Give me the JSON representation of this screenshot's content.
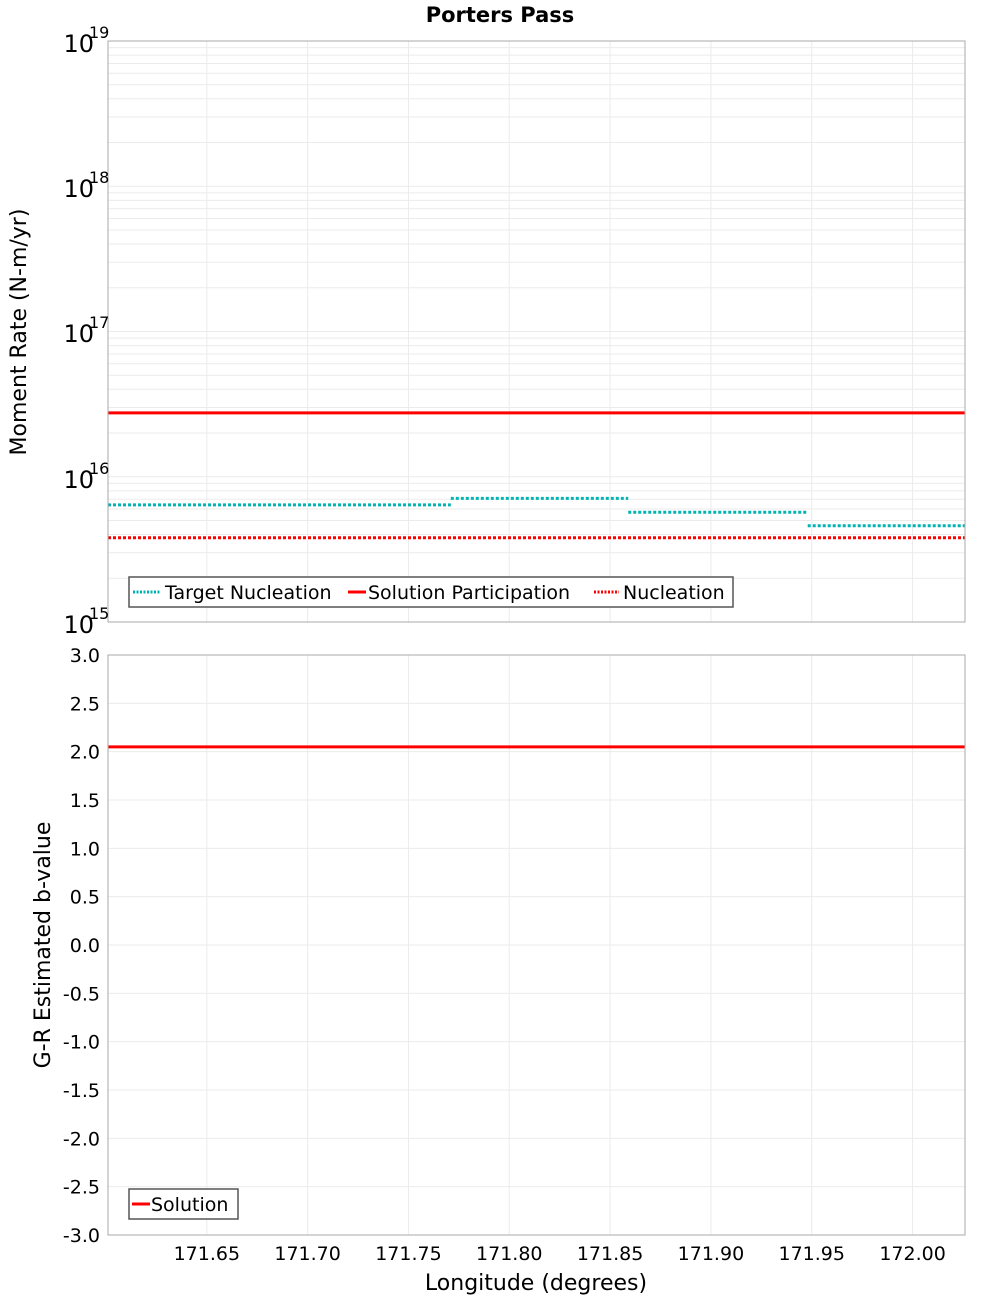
{
  "chart_data": [
    {
      "type": "line",
      "title": "Porters Pass",
      "xlabel": "Longitude (degrees)",
      "ylabel": "Moment Rate (N-m/yr)",
      "yscale": "log",
      "ylim": [
        1000000000000000.0,
        1e+19
      ],
      "xlim": [
        171.601,
        172.026
      ],
      "grid": true,
      "y_ticks": [
        {
          "base": "10",
          "exp": "19",
          "value": 1e+19
        },
        {
          "base": "10",
          "exp": "18",
          "value": 1e+18
        },
        {
          "base": "10",
          "exp": "17",
          "value": 1e+17
        },
        {
          "base": "10",
          "exp": "16",
          "value": 1e+16
        },
        {
          "base": "10",
          "exp": "15",
          "value": 1000000000000000.0
        }
      ],
      "legend_position": "lower-left",
      "series": [
        {
          "name": "Target Nucleation",
          "style": "dotted",
          "color": "#00b4b4",
          "segments": [
            {
              "x": [
                171.601,
                171.771
              ],
              "y": 6400000000000000.0
            },
            {
              "x": [
                171.771,
                171.859
              ],
              "y": 7100000000000000.0
            },
            {
              "x": [
                171.859,
                171.948
              ],
              "y": 5700000000000000.0
            },
            {
              "x": [
                171.948,
                172.026
              ],
              "y": 4600000000000000.0
            }
          ]
        },
        {
          "name": "Solution Participation",
          "style": "solid",
          "color": "#ff0000",
          "segments": [
            {
              "x": [
                171.601,
                172.026
              ],
              "y": 2.75e+16
            }
          ]
        },
        {
          "name": "Nucleation",
          "style": "dotted",
          "color": "#ff0000",
          "segments": [
            {
              "x": [
                171.601,
                172.026
              ],
              "y": 3800000000000000.0
            }
          ]
        }
      ],
      "section_boundaries": [
        171.686,
        171.771,
        171.859,
        171.948
      ]
    },
    {
      "type": "line",
      "title": "",
      "xlabel": "Longitude (degrees)",
      "ylabel": "G-R Estimated b-value",
      "ylim": [
        -3.0,
        3.0
      ],
      "xlim": [
        171.601,
        172.026
      ],
      "grid": true,
      "y_ticks": [
        "3.0",
        "2.5",
        "2.0",
        "1.5",
        "1.0",
        "0.5",
        "0.0",
        "-0.5",
        "-1.0",
        "-1.5",
        "-2.0",
        "-2.5",
        "-3.0"
      ],
      "x_ticks": [
        "171.65",
        "171.70",
        "171.75",
        "171.80",
        "171.85",
        "171.90",
        "171.95",
        "172.00"
      ],
      "legend_position": "lower-left",
      "series": [
        {
          "name": "Solution",
          "style": "solid",
          "color": "#ff0000",
          "segments": [
            {
              "x": [
                171.601,
                172.026
              ],
              "y": 2.05
            }
          ]
        }
      ]
    }
  ],
  "title": "Porters Pass",
  "top": {
    "ylabel": "Moment Rate (N-m/yr)",
    "ticks": [
      {
        "base": "10",
        "exp": "19"
      },
      {
        "base": "10",
        "exp": "18"
      },
      {
        "base": "10",
        "exp": "17"
      },
      {
        "base": "10",
        "exp": "16"
      },
      {
        "base": "10",
        "exp": "15"
      }
    ],
    "legend": [
      "Target Nucleation",
      "Solution Participation",
      "Nucleation"
    ]
  },
  "bottom": {
    "ylabel": "G-R Estimated b-value",
    "ticks": [
      "3.0",
      "2.5",
      "2.0",
      "1.5",
      "1.0",
      "0.5",
      "0.0",
      "-0.5",
      "-1.0",
      "-1.5",
      "-2.0",
      "-2.5",
      "-3.0"
    ],
    "legend": [
      "Solution"
    ]
  },
  "xaxis": {
    "label": "Longitude (degrees)",
    "ticks": [
      "171.65",
      "171.70",
      "171.75",
      "171.80",
      "171.85",
      "171.90",
      "171.95",
      "172.00"
    ]
  },
  "colors": {
    "cyan": "#00b4b4",
    "red": "#ff0000",
    "grid": "#ebebeb",
    "border": "#aaaaaa"
  }
}
